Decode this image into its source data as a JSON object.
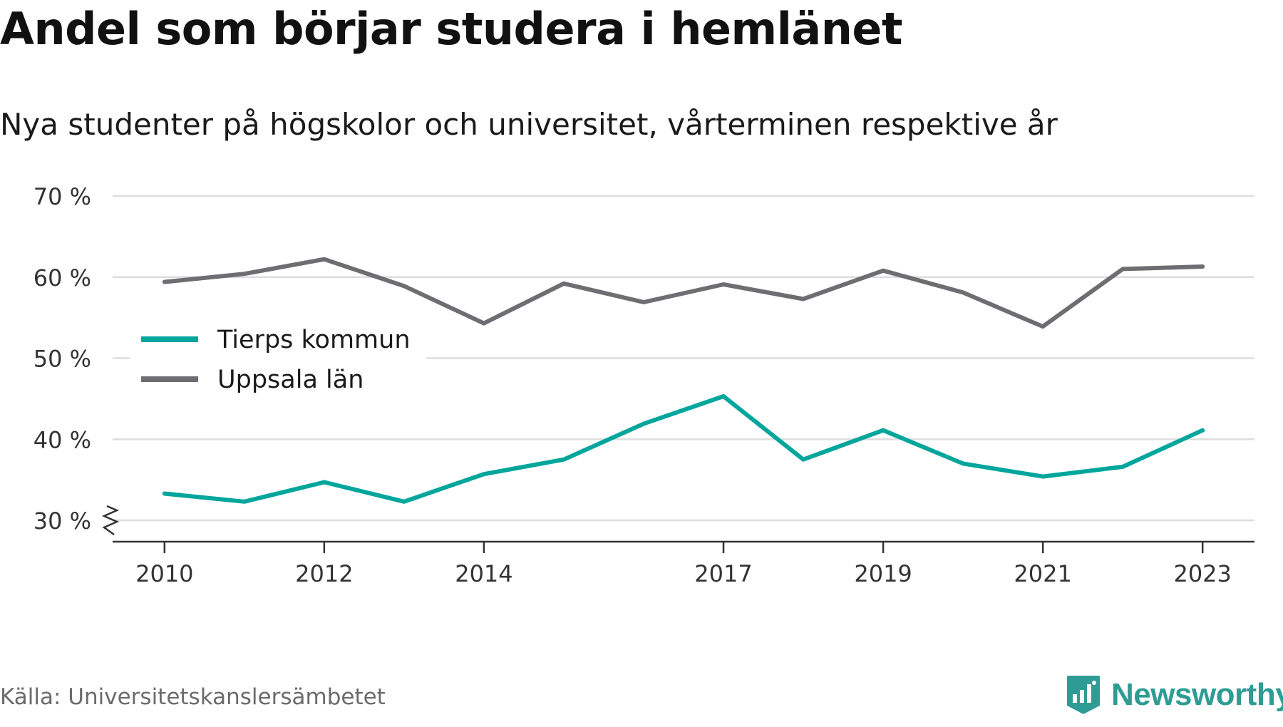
{
  "title": "Andel som börjar studera i hemlänet",
  "subtitle": "Nya studenter på högskolor och universitet, vårterminen respektive år",
  "source": "Källa: Universitetskanslersämbetet",
  "brand": "Newsworthy",
  "colors": {
    "tierp": "#00a69c",
    "uppsala": "#6e6d72",
    "grid": "#dddddd",
    "axis": "#333333",
    "brand": "#2e9c94"
  },
  "chart_data": {
    "type": "line",
    "x": [
      2010,
      2011,
      2012,
      2013,
      2014,
      2015,
      2016,
      2017,
      2018,
      2019,
      2020,
      2021,
      2022,
      2023
    ],
    "x_tick_values": [
      2010,
      2012,
      2014,
      2017,
      2019,
      2021,
      2023
    ],
    "x_tick_labels": [
      "2010",
      "2012",
      "2014",
      "2017",
      "2019",
      "2021",
      "2023"
    ],
    "y_tick_values": [
      30,
      40,
      50,
      60,
      70
    ],
    "y_tick_labels": [
      "30 %",
      "40 %",
      "50 %",
      "60 %",
      "70 %"
    ],
    "ylim": [
      30,
      70
    ],
    "xlim": [
      2009.35,
      2023.65
    ],
    "y_axis_break": true,
    "grid": true,
    "legend_position": "left",
    "series": [
      {
        "name": "Tierps kommun",
        "color": "#00a69c",
        "values": [
          33.3,
          32.3,
          34.7,
          32.3,
          35.7,
          37.5,
          41.9,
          45.3,
          37.5,
          41.1,
          37.0,
          35.4,
          36.6,
          41.1
        ]
      },
      {
        "name": "Uppsala län",
        "color": "#6e6d72",
        "values": [
          59.4,
          60.4,
          62.2,
          58.9,
          54.3,
          59.2,
          56.9,
          59.1,
          57.3,
          60.8,
          58.1,
          53.9,
          61.0,
          61.3
        ]
      }
    ]
  }
}
